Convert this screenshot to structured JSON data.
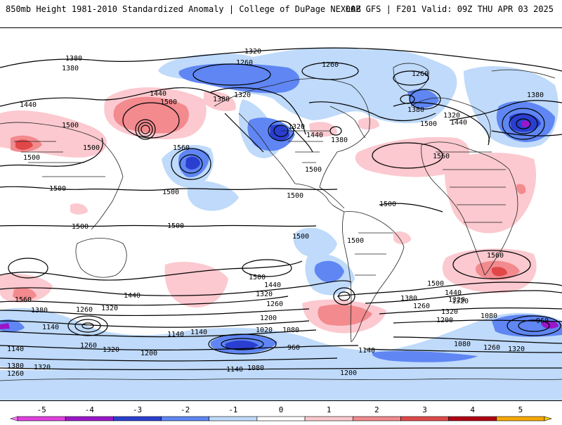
{
  "header": {
    "left": "850mb Height 1981-2010 Standardized Anomaly | College of DuPage NEXLAB",
    "right": "00Z GFS | F201 Valid: 09Z THU APR 03 2025"
  },
  "colorbar": {
    "tick_labels": [
      "-5",
      "-4",
      "-3",
      "-2",
      "-1",
      "0",
      "1",
      "2",
      "3",
      "4",
      "5"
    ],
    "colors": [
      "#e040e0",
      "#9a16c8",
      "#2a3fcf",
      "#5f86f3",
      "#bfdafa",
      "#ffffff",
      "#fbc9cf",
      "#f28a8e",
      "#e04848",
      "#b00014",
      "#f5a800"
    ]
  },
  "contour_labels": [
    "1380",
    "1380",
    "1320",
    "1260",
    "1260",
    "1260",
    "1380",
    "1440",
    "1500",
    "1440",
    "1380",
    "1320",
    "1500",
    "1500",
    "1500",
    "1320",
    "1440",
    "1380",
    "1500",
    "1500",
    "1380",
    "1320",
    "1440",
    "1560",
    "1560",
    "1500",
    "1500",
    "1500",
    "1500",
    "1500",
    "1500",
    "1500",
    "1500",
    "1560",
    "1500",
    "1440",
    "1500",
    "1560",
    "1380",
    "1440",
    "1320",
    "1260",
    "1200",
    "1320",
    "1140",
    "1260",
    "1320",
    "1200",
    "1140",
    "1140",
    "1020",
    "1080",
    "960",
    "1140",
    "1080",
    "1200",
    "1140",
    "1260",
    "1320",
    "1380",
    "1440",
    "1320",
    "1260",
    "1200",
    "1080",
    "1080",
    "960",
    "1260",
    "1320",
    "1140",
    "1380",
    "1320",
    "1260",
    "1320"
  ]
}
